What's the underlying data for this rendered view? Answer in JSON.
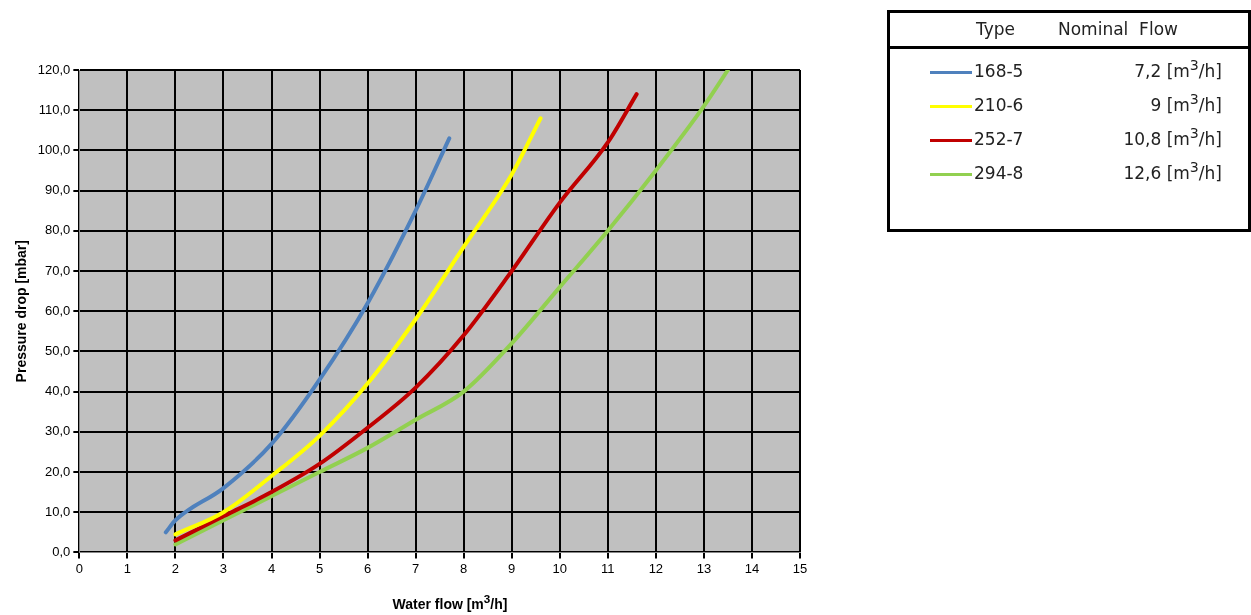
{
  "chart_data": {
    "type": "line",
    "xlabel": "Water flow [m$^{3}$/h]",
    "ylabel": "Pressure drop [mbar]",
    "legend_title": "Type",
    "legend": "right",
    "grid": true,
    "marker": "none",
    "line_style": "solid",
    "xlim": [
      0,
      15
    ],
    "xticks": [
      0,
      1,
      2,
      3,
      4,
      5,
      6,
      7,
      8,
      9,
      10,
      11,
      12,
      13,
      14,
      15
    ],
    "ylim": [
      0,
      120
    ],
    "yticks": [
      {
        "value": 0,
        "label": "0,0"
      },
      {
        "value": 10,
        "label": "10,0"
      },
      {
        "value": 20,
        "label": "20,0"
      },
      {
        "value": 30,
        "label": "30,0"
      },
      {
        "value": 40,
        "label": "40,0"
      },
      {
        "value": 50,
        "label": "50,0"
      },
      {
        "value": 60,
        "label": "60,0"
      },
      {
        "value": 70,
        "label": "70,0"
      },
      {
        "value": 80,
        "label": "80,0"
      },
      {
        "value": 90,
        "label": "90,0"
      },
      {
        "value": 100,
        "label": "100,0"
      },
      {
        "value": 110,
        "label": "110,0"
      },
      {
        "value": 120,
        "label": "120,0"
      }
    ],
    "annotations": [
      "Nominal  Flow",
      "7,2 [m$^{3}$/h]",
      "9 [m$^{3}$/h]",
      "10,8 [m$^{3}$/h]",
      "12,6 [m$^{3}$/h]"
    ],
    "series": [
      {
        "name": "168-5",
        "color": "#4f81bd",
        "x": [
          1.8,
          2,
          3,
          4,
          5,
          6,
          7,
          7.7
        ],
        "values": [
          5,
          8,
          16,
          27,
          43,
          62,
          85,
          103
        ]
      },
      {
        "name": "210-6",
        "color": "#ffff00",
        "x": [
          2,
          3,
          4,
          5,
          6,
          7,
          8,
          9,
          9.6
        ],
        "values": [
          4.5,
          10,
          19,
          29,
          42,
          58,
          76,
          94,
          108
        ]
      },
      {
        "name": "252-7",
        "color": "#c00000",
        "x": [
          2,
          3,
          4,
          5,
          6,
          7,
          8,
          9,
          10,
          11,
          11.6
        ],
        "values": [
          3,
          9,
          15,
          22,
          31,
          41,
          54,
          70,
          87,
          102,
          114
        ]
      },
      {
        "name": "294-8",
        "color": "#92d050",
        "x": [
          2,
          3,
          4,
          5,
          6,
          7,
          8,
          9,
          10,
          11,
          12,
          13,
          13.5
        ],
        "values": [
          2,
          8,
          14,
          20,
          26,
          33,
          40,
          52,
          66,
          80,
          95,
          111,
          120
        ]
      }
    ]
  }
}
